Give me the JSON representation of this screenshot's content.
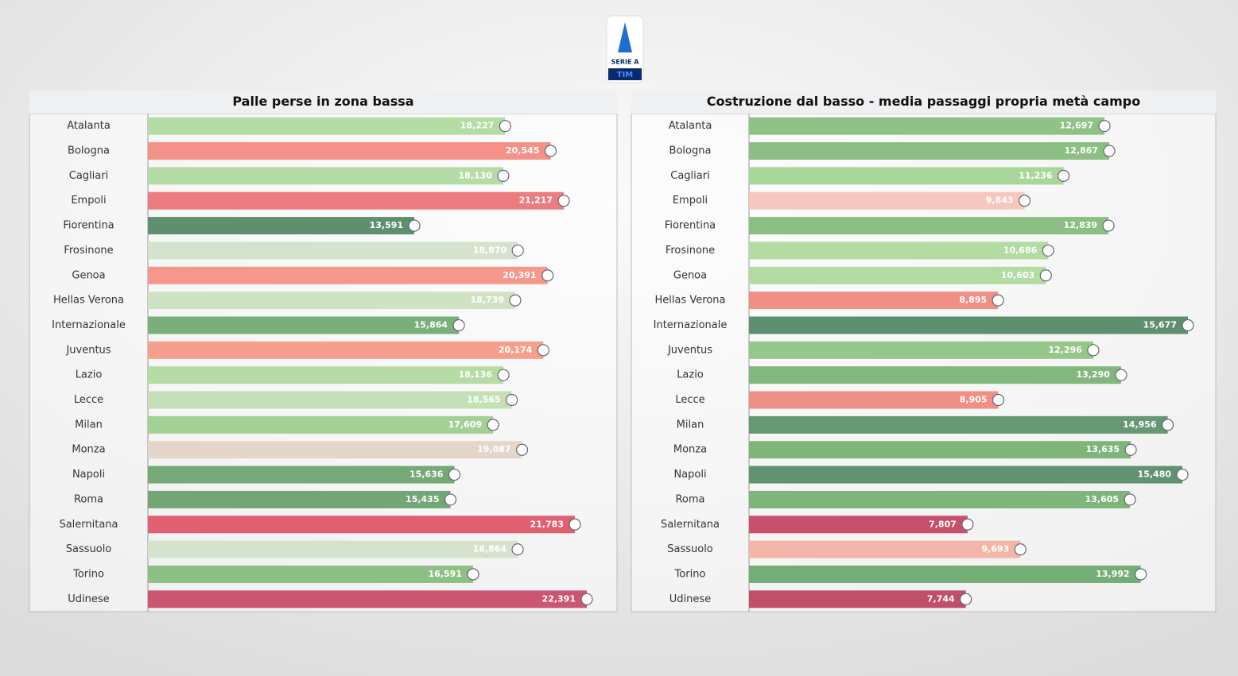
{
  "logo": {
    "league": "SERIE A",
    "sponsor": "TIM"
  },
  "chart_data": [
    {
      "type": "bar",
      "title": "Palle perse in zona bassa",
      "categories": [
        "Atalanta",
        "Bologna",
        "Cagliari",
        "Empoli",
        "Fiorentina",
        "Frosinone",
        "Genoa",
        "Hellas Verona",
        "Internazionale",
        "Juventus",
        "Lazio",
        "Lecce",
        "Milan",
        "Monza",
        "Napoli",
        "Roma",
        "Salernitana",
        "Sassuolo",
        "Torino",
        "Udinese"
      ],
      "values": [
        18.227,
        20.545,
        18.13,
        21.217,
        13.591,
        18.87,
        20.391,
        18.739,
        15.864,
        20.174,
        18.136,
        18.565,
        17.609,
        19.087,
        15.636,
        15.435,
        21.783,
        18.864,
        16.591,
        22.391
      ],
      "value_labels": [
        "18,227",
        "20,545",
        "18,130",
        "21,217",
        "13,591",
        "18,870",
        "20,391",
        "18,739",
        "15,864",
        "20,174",
        "18,136",
        "18,565",
        "17,609",
        "19,087",
        "15,636",
        "15,435",
        "21,783",
        "18,864",
        "16,591",
        "22,391"
      ],
      "colors": [
        "#b5dca5",
        "#f4928a",
        "#b5dca5",
        "#ec7c7f",
        "#5e9070",
        "#d4e4cc",
        "#f5978a",
        "#cfe3c4",
        "#7aaf7a",
        "#f59f8c",
        "#b5dca5",
        "#c4e0b6",
        "#a2d095",
        "#e4d6c8",
        "#75aa77",
        "#72a674",
        "#e0606f",
        "#d4e4cc",
        "#8dc084",
        "#cc5570"
      ]
    },
    {
      "type": "bar",
      "title": "Costruzione dal basso - media passaggi propria metà campo",
      "categories": [
        "Atalanta",
        "Bologna",
        "Cagliari",
        "Empoli",
        "Fiorentina",
        "Frosinone",
        "Genoa",
        "Hellas Verona",
        "Internazionale",
        "Juventus",
        "Lazio",
        "Lecce",
        "Milan",
        "Monza",
        "Napoli",
        "Roma",
        "Salernitana",
        "Sassuolo",
        "Torino",
        "Udinese"
      ],
      "values": [
        12.697,
        12.867,
        11.236,
        9.843,
        12.839,
        10.686,
        10.603,
        8.895,
        15.677,
        12.296,
        13.29,
        8.905,
        14.956,
        13.635,
        15.48,
        13.605,
        7.807,
        9.693,
        13.992,
        7.744
      ],
      "value_labels": [
        "12,697",
        "12,867",
        "11,236",
        "9,843",
        "12,839",
        "10,686",
        "10,603",
        "8,895",
        "15,677",
        "12,296",
        "13,290",
        "8,905",
        "14,956",
        "13,635",
        "15,480",
        "13,605",
        "7,807",
        "9,693",
        "13,992",
        "7,744"
      ],
      "colors": [
        "#8fc285",
        "#8cbf83",
        "#a8d799",
        "#f6c8bd",
        "#8cbf83",
        "#b2dca2",
        "#b2dca2",
        "#f08f85",
        "#5e9070",
        "#95c68a",
        "#82b87d",
        "#f08f85",
        "#669973",
        "#7db57a",
        "#619371",
        "#7db57a",
        "#c9506c",
        "#f5b6aa",
        "#75ad77",
        "#c24f6a"
      ]
    }
  ]
}
